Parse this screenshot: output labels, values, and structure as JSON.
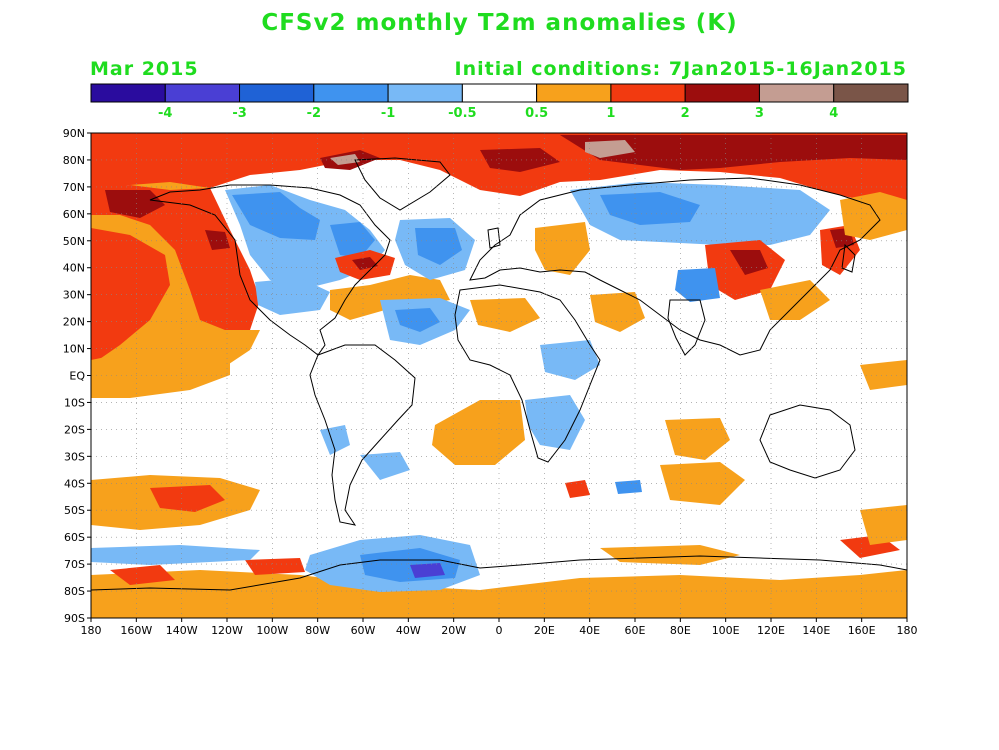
{
  "title": "CFSv2 monthly T2m anomalies (K)",
  "valid_month": "Mar 2015",
  "initial_conditions": "Initial conditions: 7Jan2015-16Jan2015",
  "colors": {
    "text": "#1fdc1f",
    "ocean_bg": "#ffffff",
    "coast": "#000000",
    "grid": "#888888"
  },
  "colorbar": {
    "bins": [
      {
        "color": "#2a0c9e"
      },
      {
        "color": "#4a3fd4"
      },
      {
        "color": "#1f62d6"
      },
      {
        "color": "#3f93ef"
      },
      {
        "color": "#78b9f6"
      },
      {
        "color": "#ffffff"
      },
      {
        "color": "#f7a11c"
      },
      {
        "color": "#f23a10"
      },
      {
        "color": "#9c0d0d"
      },
      {
        "color": "#c49d92"
      },
      {
        "color": "#7a5548"
      }
    ],
    "labels": [
      "-4",
      "-3",
      "-2",
      "-1",
      "-0.5",
      "0.5",
      "1",
      "2",
      "3",
      "4"
    ]
  },
  "chart_data": {
    "type": "heatmap",
    "lon_range": [
      -180,
      180
    ],
    "lat_range": [
      -90,
      90
    ],
    "x_ticks": [
      "180",
      "160W",
      "140W",
      "120W",
      "100W",
      "80W",
      "60W",
      "40W",
      "20W",
      "0",
      "20E",
      "40E",
      "60E",
      "80E",
      "100E",
      "120E",
      "140E",
      "160E",
      "180"
    ],
    "y_ticks": [
      "90N",
      "80N",
      "70N",
      "60N",
      "50N",
      "40N",
      "30N",
      "20N",
      "10N",
      "EQ",
      "10S",
      "20S",
      "30S",
      "40S",
      "50S",
      "60S",
      "70S",
      "80S",
      "90S"
    ],
    "grid": true
  }
}
